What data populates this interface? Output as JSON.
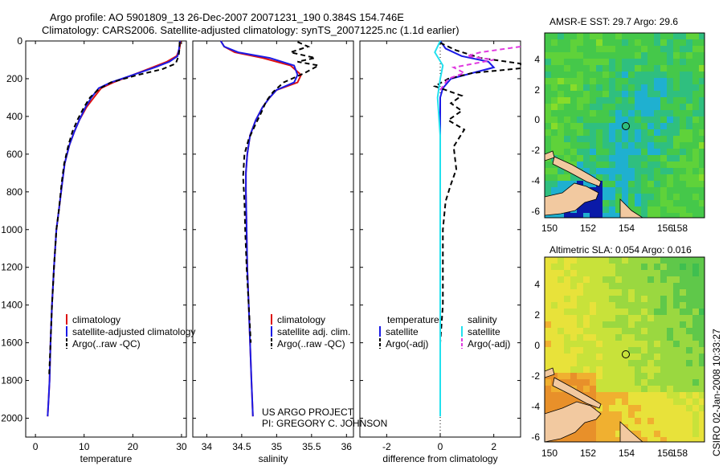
{
  "header": {
    "line1": "Argo profile: AO 5901809_13 26-Dec-2007 20071231_190 0.384S 154.746E",
    "line2": "Climatology: CARS2006. Satellite-adjusted climatology: synTS_20071225.nc (1.1d earlier)"
  },
  "colors": {
    "climatology": "#dd1111",
    "satellite": "#1a1ae6",
    "argo": "#000000",
    "salinity_sat": "#22e0ee",
    "salinity_argo": "#e03ae0",
    "land": "#f2c9a0"
  },
  "legend_temp": [
    "climatology",
    "satellite-adjusted climatology",
    "Argo(..raw -QC)"
  ],
  "legend_sal": [
    "climatology",
    "satellite adj. clim.",
    "Argo(..raw -QC)"
  ],
  "legend_diff": {
    "temp_header": "temperature",
    "sal_header": "salinity",
    "temp_items": [
      "satellite",
      "Argo(-adj)"
    ],
    "sal_items": [
      "satellite",
      "Argo(-adj)"
    ]
  },
  "project_note": {
    "line1": "US ARGO PROJECT",
    "line2": "PI: GREGORY C. JOHNSON"
  },
  "map_sst": {
    "title": "AMSR-E SST: 29.7 Argo: 29.6",
    "xticks": [
      "150",
      "152",
      "154",
      "156",
      "158"
    ],
    "yticks": [
      "4",
      "2",
      "0",
      "-2",
      "-4",
      "-6"
    ]
  },
  "map_sla": {
    "title": "Altimetric SLA: 0.054 Argo: 0.016",
    "xticks": [
      "150",
      "152",
      "154",
      "156",
      "158"
    ],
    "yticks": [
      "4",
      "2",
      "0",
      "-2",
      "-4",
      "-6"
    ]
  },
  "footer_vertical": "CSIRO 02-Jan-2008 10:33:27",
  "chart_data": [
    {
      "type": "line",
      "name": "temperature-profile",
      "xlabel": "temperature",
      "ylabel": "",
      "xlim": [
        -2,
        31
      ],
      "ylim": [
        2100,
        0
      ],
      "xticks": [
        0,
        10,
        20,
        30
      ],
      "yticks": [
        0,
        200,
        400,
        600,
        800,
        1000,
        1200,
        1400,
        1600,
        1800,
        2000
      ],
      "series": [
        {
          "name": "climatology",
          "style": "solid",
          "color": "#dd1111",
          "x": [
            29.8,
            29.6,
            29.0,
            27.0,
            24.0,
            20.0,
            16.0,
            13.5,
            12.0,
            10.5,
            9.0,
            8.0,
            7.0,
            6.0,
            5.5,
            4.8,
            4.3,
            3.8,
            3.4,
            3.1,
            2.9,
            2.7,
            2.5
          ],
          "depth": [
            0,
            40,
            80,
            110,
            140,
            180,
            220,
            250,
            300,
            350,
            420,
            480,
            550,
            650,
            750,
            900,
            1000,
            1200,
            1400,
            1600,
            1800,
            1900,
            1990
          ]
        },
        {
          "name": "satellite-adjusted climatology",
          "style": "solid",
          "color": "#1a1ae6",
          "x": [
            29.7,
            29.5,
            29.2,
            27.5,
            24.5,
            20.0,
            15.5,
            13.0,
            11.5,
            10.3,
            9.0,
            8.0,
            7.0,
            6.0,
            5.5,
            4.8,
            4.3,
            3.8,
            3.4,
            3.1,
            2.9,
            2.7,
            2.5
          ],
          "depth": [
            0,
            40,
            80,
            110,
            140,
            180,
            220,
            250,
            300,
            350,
            420,
            480,
            550,
            650,
            750,
            900,
            1000,
            1200,
            1400,
            1600,
            1800,
            1900,
            1990
          ]
        },
        {
          "name": "Argo",
          "style": "dashed",
          "color": "#000000",
          "x": [
            29.6,
            29.6,
            29.4,
            28.8,
            26.0,
            21.0,
            15.5,
            13.0,
            11.2,
            10.0,
            8.6,
            7.6,
            6.8,
            5.9,
            5.4,
            4.8,
            4.3,
            3.8,
            3.4,
            3.1,
            2.8
          ],
          "depth": [
            5,
            40,
            80,
            120,
            150,
            180,
            220,
            255,
            300,
            350,
            420,
            480,
            550,
            650,
            750,
            900,
            1000,
            1200,
            1400,
            1600,
            1780
          ]
        }
      ]
    },
    {
      "type": "line",
      "name": "salinity-profile",
      "xlabel": "salinity",
      "xlim": [
        33.8,
        36.1
      ],
      "ylim": [
        2100,
        0
      ],
      "xticks": [
        34,
        34.5,
        35,
        35.5,
        36
      ],
      "series": [
        {
          "name": "climatology",
          "style": "solid",
          "color": "#dd1111",
          "x": [
            34.2,
            34.25,
            34.4,
            34.8,
            35.2,
            35.35,
            35.3,
            35.0,
            34.9,
            34.8,
            34.7,
            34.62,
            34.58,
            34.56,
            34.56,
            34.57,
            34.58,
            34.6,
            34.62,
            34.64,
            34.66
          ],
          "depth": [
            0,
            30,
            60,
            90,
            130,
            180,
            220,
            260,
            300,
            350,
            420,
            500,
            600,
            700,
            800,
            1000,
            1200,
            1400,
            1600,
            1800,
            1990
          ]
        },
        {
          "name": "satellite adj. clim.",
          "style": "solid",
          "color": "#1a1ae6",
          "x": [
            34.2,
            34.25,
            34.45,
            34.9,
            35.25,
            35.3,
            35.25,
            35.0,
            34.9,
            34.8,
            34.7,
            34.62,
            34.58,
            34.56,
            34.56,
            34.57,
            34.58,
            34.6,
            34.62,
            34.64,
            34.66
          ],
          "depth": [
            0,
            30,
            60,
            90,
            130,
            180,
            220,
            260,
            300,
            350,
            420,
            500,
            600,
            700,
            800,
            1000,
            1200,
            1400,
            1600,
            1800,
            1990
          ]
        },
        {
          "name": "Argo",
          "style": "dashed",
          "color": "#000000",
          "x": [
            35.3,
            35.45,
            35.2,
            35.55,
            35.3,
            35.6,
            35.4,
            35.1,
            34.95,
            34.85,
            34.78,
            34.7,
            34.6,
            34.54,
            34.52,
            34.54,
            34.55,
            34.57,
            34.6,
            34.63
          ],
          "depth": [
            5,
            30,
            60,
            90,
            110,
            130,
            170,
            220,
            270,
            320,
            380,
            440,
            520,
            600,
            720,
            850,
            1000,
            1200,
            1400,
            1600
          ]
        }
      ]
    },
    {
      "type": "line",
      "name": "difference-profile",
      "xlabel": "difference from climatology",
      "xlim": [
        -3,
        3
      ],
      "ylim": [
        2100,
        0
      ],
      "xticks": [
        -2,
        0,
        2
      ],
      "series": [
        {
          "name": "temperature satellite",
          "style": "solid",
          "color": "#1a1ae6",
          "x": [
            0.0,
            0.2,
            0.8,
            1.8,
            2.0,
            1.2,
            0.4,
            0.1,
            0.0,
            0.0,
            0.0,
            0.0
          ],
          "depth": [
            0,
            40,
            80,
            110,
            140,
            170,
            200,
            250,
            300,
            400,
            500,
            600
          ]
        },
        {
          "name": "temperature Argo(-adj)",
          "style": "dashed",
          "color": "#000000",
          "x": [
            0.0,
            0.6,
            1.5,
            3.0,
            3.0,
            1.2,
            0.3,
            -0.2,
            0.8,
            0.4,
            0.8,
            0.3,
            0.9,
            0.5,
            0.6,
            0.4,
            0.2,
            0.1,
            0.1,
            0.1,
            0.0
          ],
          "depth": [
            10,
            50,
            90,
            120,
            145,
            170,
            200,
            240,
            290,
            330,
            370,
            420,
            470,
            560,
            680,
            760,
            850,
            1000,
            1200,
            1400,
            1600
          ]
        },
        {
          "name": "salinity satellite",
          "style": "solid",
          "color": "#22e0ee",
          "x": [
            0.0,
            -0.2,
            0.1,
            0.0,
            -0.1,
            0.0,
            0.0,
            0.0,
            0.0,
            0.0
          ],
          "depth": [
            0,
            60,
            130,
            200,
            300,
            500,
            800,
            1200,
            1600,
            1990
          ]
        },
        {
          "name": "salinity Argo(-adj)",
          "style": "dashed",
          "color": "#e03ae0",
          "x": [
            3.0,
            1.5,
            1.0,
            2.0,
            0.5,
            0.9,
            0.3,
            0.0
          ],
          "depth": [
            30,
            60,
            80,
            100,
            140,
            170,
            200,
            260
          ]
        }
      ]
    }
  ]
}
